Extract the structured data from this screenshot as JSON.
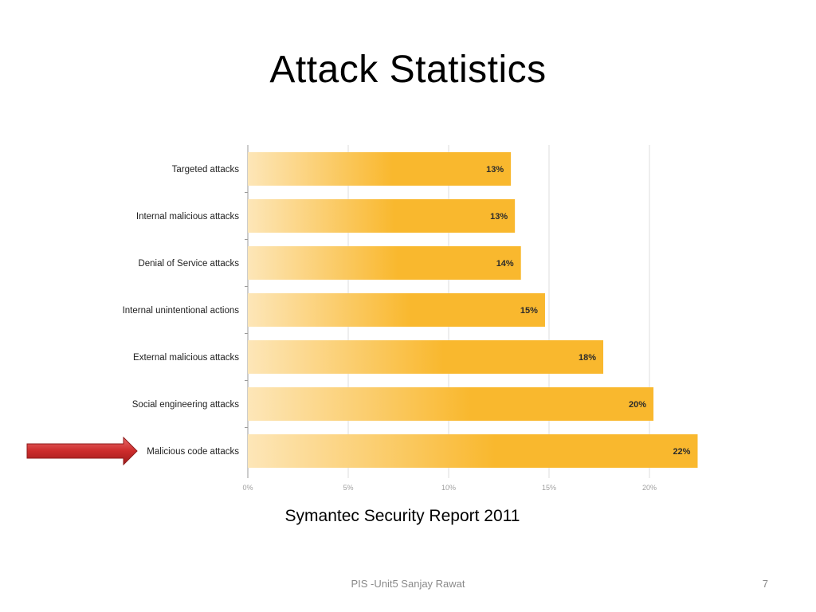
{
  "slide": {
    "title": "Attack Statistics",
    "caption": "Symantec Security Report 2011",
    "footer_text": "PIS -Unit5 Sanjay Rawat",
    "page_number": "7"
  },
  "colors": {
    "bar_start": "#fde6b8",
    "bar_end": "#f9b82e",
    "arrow": "#cc2b2b",
    "grid": "#dcdcdc"
  },
  "highlight": {
    "category": "Malicious code attacks",
    "icon": "right-arrow-icon"
  },
  "chart_data": {
    "type": "bar",
    "orientation": "horizontal",
    "title": "",
    "xlabel": "",
    "ylabel": "",
    "categories": [
      "Targeted attacks",
      "Internal malicious attacks",
      "Denial of Service attacks",
      "Internal unintentional actions",
      "External malicious attacks",
      "Social engineering attacks",
      "Malicious code attacks"
    ],
    "values": [
      13.1,
      13.3,
      13.6,
      14.8,
      17.7,
      20.2,
      22.4
    ],
    "data_labels": [
      "13%",
      "13%",
      "14%",
      "15%",
      "18%",
      "20%",
      "22%"
    ],
    "xlim": [
      0,
      23
    ],
    "x_ticks": [
      0,
      5,
      10,
      15,
      20
    ],
    "x_tick_labels": [
      "0%",
      "5%",
      "10%",
      "15%",
      "20%"
    ],
    "grid": true,
    "legend": "none"
  }
}
